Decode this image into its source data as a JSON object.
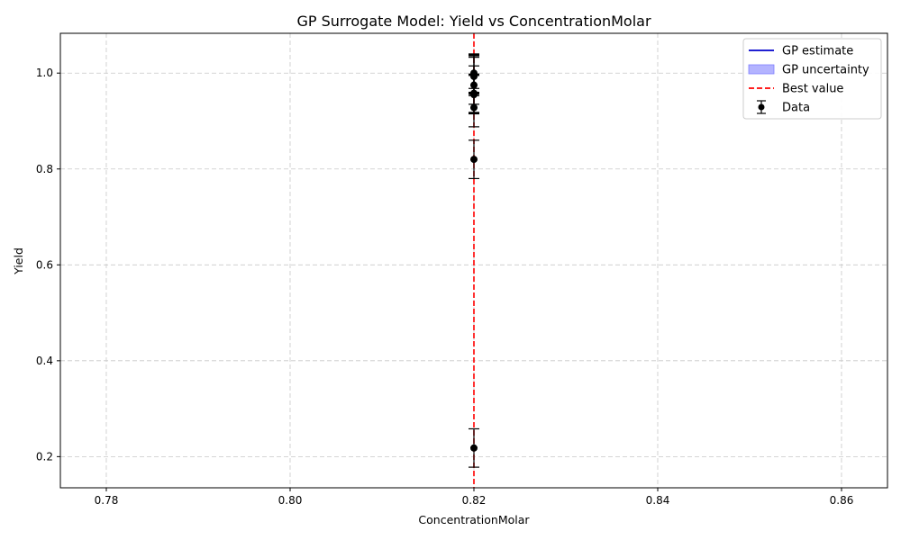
{
  "chart_data": {
    "type": "scatter",
    "title": "GP Surrogate Model: Yield vs ConcentrationMolar",
    "xlabel": "ConcentrationMolar",
    "ylabel": "Yield",
    "xlim": [
      0.775,
      0.865
    ],
    "ylim": [
      0.135,
      1.083
    ],
    "x_ticks": [
      "0.78",
      "0.80",
      "0.82",
      "0.84",
      "0.86"
    ],
    "y_ticks": [
      "0.2",
      "0.4",
      "0.6",
      "0.8",
      "1.0"
    ],
    "grid": true,
    "legend_position": "top-right",
    "best_value": 0.82,
    "data": {
      "name": "Data",
      "error": 0.04,
      "points": [
        {
          "x": 0.82,
          "y": 0.218
        },
        {
          "x": 0.82,
          "y": 0.82
        },
        {
          "x": 0.82,
          "y": 0.928
        },
        {
          "x": 0.82,
          "y": 0.955
        },
        {
          "x": 0.82,
          "y": 0.957
        },
        {
          "x": 0.82,
          "y": 0.958
        },
        {
          "x": 0.82,
          "y": 0.975
        },
        {
          "x": 0.82,
          "y": 0.993
        },
        {
          "x": 0.82,
          "y": 0.996
        },
        {
          "x": 0.82,
          "y": 0.998
        },
        {
          "x": 0.82,
          "y": 1.0
        }
      ]
    },
    "legend": [
      {
        "label": "GP estimate",
        "kind": "line",
        "color": "#0000cc"
      },
      {
        "label": "GP uncertainty",
        "kind": "patch",
        "color": "#b3b3ff"
      },
      {
        "label": "Best value",
        "kind": "dashed",
        "color": "#ff0000"
      },
      {
        "label": "Data",
        "kind": "errorbar",
        "color": "#000000"
      }
    ]
  }
}
